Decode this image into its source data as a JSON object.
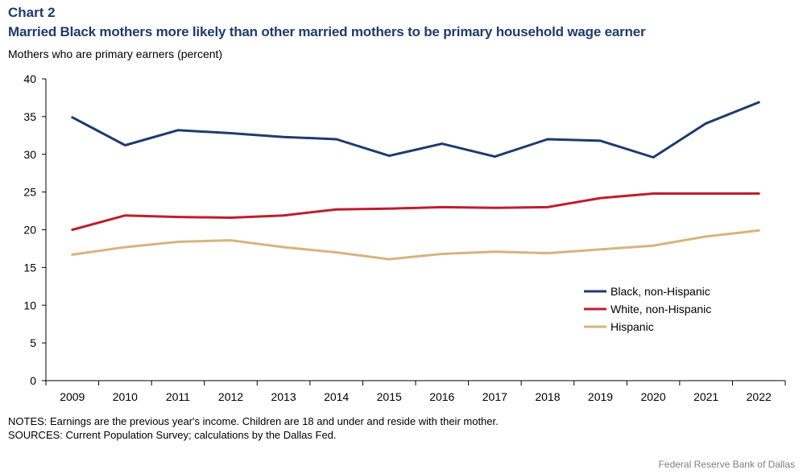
{
  "chart_label": "Chart 2",
  "title": "Married Black mothers more likely than other married mothers to be primary household wage earner",
  "units_label": "Mothers who are primary earners (percent)",
  "notes": "NOTES: Earnings are the previous year's income. Children are 18 and under and reside with their mother.",
  "sources": "SOURCES: Current Population Survey; calculations by the Dallas Fed.",
  "credit": "Federal Reserve Bank of Dallas",
  "chart_data": {
    "type": "line",
    "title": "Married Black mothers more likely than other married mothers to be primary household wage earner",
    "xlabel": "",
    "ylabel": "Mothers who are primary earners (percent)",
    "ylim": [
      0,
      40
    ],
    "yticks": [
      0,
      5,
      10,
      15,
      20,
      25,
      30,
      35,
      40
    ],
    "categories": [
      "2009",
      "2010",
      "2011",
      "2012",
      "2013",
      "2014",
      "2015",
      "2016",
      "2017",
      "2018",
      "2019",
      "2020",
      "2021",
      "2022"
    ],
    "grid": false,
    "legend_position": "right",
    "series": [
      {
        "name": "Black, non-Hispanic",
        "color": "#1f3b6e",
        "values": [
          34.9,
          31.2,
          33.2,
          32.8,
          32.3,
          32.0,
          29.8,
          31.4,
          29.7,
          32.0,
          31.8,
          29.6,
          34.1,
          36.9
        ]
      },
      {
        "name": "White, non-Hispanic",
        "color": "#be1e2d",
        "values": [
          20.0,
          21.9,
          21.7,
          21.6,
          21.9,
          22.7,
          22.8,
          23.0,
          22.9,
          23.0,
          24.2,
          24.8,
          24.8,
          24.8
        ]
      },
      {
        "name": "Hispanic",
        "color": "#d6b47f",
        "values": [
          16.7,
          17.7,
          18.4,
          18.6,
          17.7,
          17.0,
          16.1,
          16.8,
          17.1,
          16.9,
          17.4,
          17.9,
          19.1,
          19.9
        ]
      }
    ]
  }
}
